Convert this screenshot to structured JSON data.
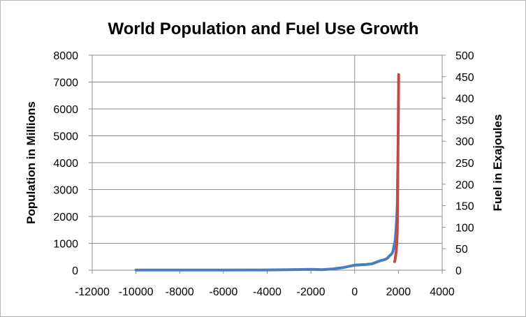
{
  "chart_data": {
    "type": "line",
    "title": "World Population and Fuel Use Growth",
    "xlabel": "",
    "ylabel": "Population in Millions",
    "y2label": "Fuel in Exajoules",
    "xlim": [
      -12000,
      4000
    ],
    "ylim": [
      0,
      8000
    ],
    "y2lim": [
      0,
      500
    ],
    "grid": true,
    "x_ticks": [
      "-12000",
      "-10000",
      "-8000",
      "-6000",
      "-4000",
      "-2000",
      "0",
      "2000",
      "4000"
    ],
    "y_ticks": [
      "0",
      "1000",
      "2000",
      "3000",
      "4000",
      "5000",
      "6000",
      "7000",
      "8000"
    ],
    "y2_ticks": [
      "0",
      "50",
      "100",
      "150",
      "200",
      "250",
      "300",
      "350",
      "400",
      "450",
      "500"
    ],
    "series": [
      {
        "axis": "left",
        "color": "#4a7ebb",
        "x": [
          -10000,
          -8000,
          -6000,
          -4000,
          -3000,
          -2000,
          -1500,
          -1000,
          -500,
          0,
          500,
          800,
          1000,
          1200,
          1400,
          1500,
          1600,
          1700,
          1750,
          1800,
          1850,
          1900,
          1927,
          1950,
          1960,
          1970
        ],
        "y": [
          4,
          5,
          6,
          10,
          20,
          30,
          20,
          50,
          100,
          190,
          210,
          240,
          300,
          360,
          400,
          450,
          540,
          610,
          700,
          900,
          1100,
          1600,
          2000,
          2500,
          3000,
          3700
        ]
      },
      {
        "axis": "right",
        "color": "#be4b48",
        "x": [
          1820,
          1850,
          1875,
          1900,
          1920,
          1940,
          1950,
          1960,
          1970,
          1980,
          1990,
          2000,
          2010
        ],
        "y": [
          20,
          25,
          35,
          45,
          60,
          80,
          100,
          140,
          200,
          270,
          330,
          380,
          455
        ]
      }
    ]
  }
}
